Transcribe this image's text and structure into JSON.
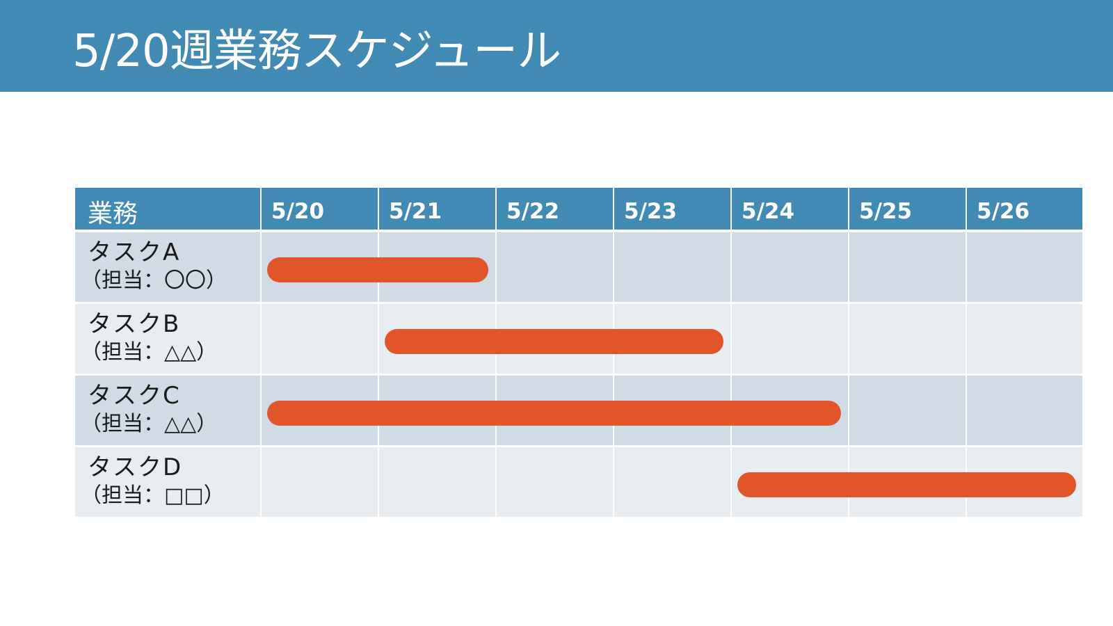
{
  "slide": {
    "title": "5/20週業務スケジュール"
  },
  "chart_data": {
    "type": "gantt",
    "header": {
      "task_column": "業務",
      "dates": [
        "5/20",
        "5/21",
        "5/22",
        "5/23",
        "5/24",
        "5/25",
        "5/26"
      ]
    },
    "tasks": [
      {
        "name": "タスクA",
        "owner": "（担当：〇〇）",
        "start": "5/20",
        "end": "5/21"
      },
      {
        "name": "タスクB",
        "owner": "（担当：△△）",
        "start": "5/21",
        "end": "5/23"
      },
      {
        "name": "タスクC",
        "owner": "（担当：△△）",
        "start": "5/20",
        "end": "5/24"
      },
      {
        "name": "タスクD",
        "owner": "（担当：□□）",
        "start": "5/24",
        "end": "5/26"
      }
    ]
  },
  "colors": {
    "header_bg": "#418ab3",
    "row_dark": "#d0dbe5",
    "row_light": "#e8edf2",
    "bar": "#e05529"
  }
}
